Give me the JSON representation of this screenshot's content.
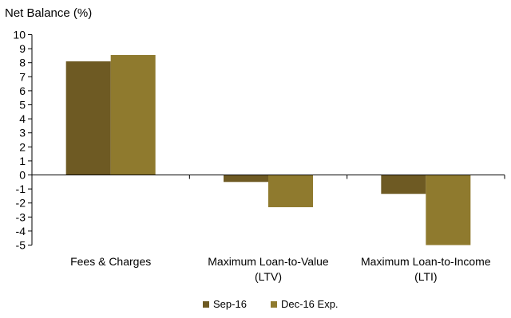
{
  "chart_data": {
    "type": "bar",
    "title": "",
    "ylabel": "Net Balance (%)",
    "xlabel": "",
    "ylim": [
      -5,
      10
    ],
    "y_ticks": [
      10,
      9,
      8,
      7,
      6,
      5,
      4,
      3,
      2,
      1,
      0,
      -1,
      -2,
      -3,
      -4,
      -5
    ],
    "grid": false,
    "legend_position": "bottom",
    "categories": [
      [
        "Fees & Charges"
      ],
      [
        "Maximum Loan-to-Value",
        "(LTV)"
      ],
      [
        "Maximum Loan-to-Income",
        "(LTI)"
      ]
    ],
    "series": [
      {
        "name": "Sep-16",
        "color": "#6e5a23",
        "values": [
          8.1,
          -0.5,
          -1.35
        ]
      },
      {
        "name": "Dec-16 Exp.",
        "color": "#8f7a2e",
        "values": [
          8.55,
          -2.3,
          -5.0
        ]
      }
    ]
  }
}
